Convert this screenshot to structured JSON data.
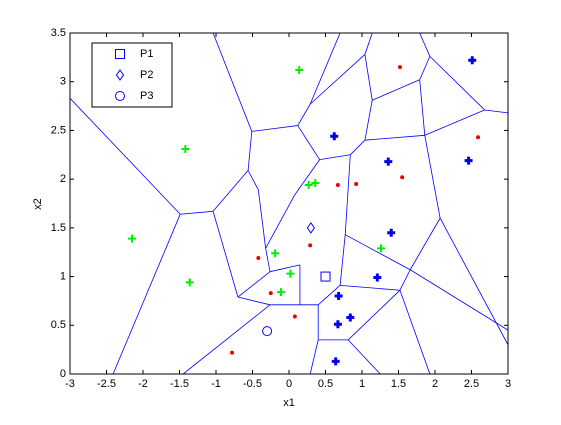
{
  "chart_data": {
    "type": "voronoi-scatter",
    "xlabel": "x1",
    "ylabel": "x2",
    "xlim": [
      -3,
      3
    ],
    "ylim": [
      0,
      3.5
    ],
    "xticks": [
      -3,
      -2.5,
      -2,
      -1.5,
      -1,
      -0.5,
      0,
      0.5,
      1,
      1.5,
      2,
      2.5,
      3
    ],
    "yticks": [
      0,
      0.5,
      1,
      1.5,
      2,
      2.5,
      3,
      3.5
    ],
    "edge_color": "#0000ff",
    "edges": [
      [
        -3.0,
        2.83,
        -1.49,
        1.64
      ],
      [
        -2.41,
        0,
        -1.49,
        1.64
      ],
      [
        -1.49,
        1.64,
        -1.04,
        1.67
      ],
      [
        -1.04,
        3.5,
        -0.51,
        2.49
      ],
      [
        -0.51,
        2.49,
        0.12,
        2.55
      ],
      [
        -0.51,
        2.49,
        -0.56,
        2.09
      ],
      [
        -0.56,
        2.09,
        -1.04,
        1.67
      ],
      [
        -0.56,
        2.09,
        -0.42,
        1.89
      ],
      [
        -0.42,
        1.89,
        -0.32,
        1.29
      ],
      [
        -0.32,
        1.29,
        -0.26,
        1.05
      ],
      [
        -1.04,
        1.67,
        -0.7,
        0.79
      ],
      [
        -0.26,
        1.05,
        -0.7,
        0.79
      ],
      [
        -0.7,
        0.79,
        -0.26,
        0.71
      ],
      [
        -0.26,
        0.71,
        -1.45,
        0
      ],
      [
        -0.26,
        0.71,
        0.15,
        0.71
      ],
      [
        0.15,
        0.71,
        0.4,
        0.71
      ],
      [
        0.4,
        0.71,
        0.4,
        0.35
      ],
      [
        0.4,
        0.35,
        0.29,
        0
      ],
      [
        0.4,
        0.35,
        0.81,
        0.35
      ],
      [
        0.81,
        0.35,
        1.25,
        0
      ],
      [
        -0.26,
        1.05,
        0.15,
        1.12
      ],
      [
        0.15,
        1.12,
        0.15,
        0.71
      ],
      [
        0.12,
        2.55,
        0.29,
        2.77
      ],
      [
        0.29,
        2.77,
        0.7,
        3.5
      ],
      [
        0.29,
        2.77,
        1.04,
        3.28
      ],
      [
        1.04,
        3.28,
        1.14,
        3.5
      ],
      [
        1.04,
        3.28,
        1.14,
        2.81
      ],
      [
        1.14,
        2.81,
        1.79,
        3.02
      ],
      [
        1.79,
        3.02,
        1.93,
        3.26
      ],
      [
        1.93,
        3.26,
        1.79,
        3.5
      ],
      [
        1.93,
        3.26,
        2.68,
        2.71
      ],
      [
        2.68,
        2.71,
        3.0,
        2.68
      ],
      [
        1.14,
        2.81,
        1.04,
        2.4
      ],
      [
        1.04,
        2.4,
        0.84,
        2.25
      ],
      [
        0.84,
        2.25,
        0.42,
        2.2
      ],
      [
        0.42,
        2.2,
        0.12,
        2.55
      ],
      [
        1.79,
        3.02,
        1.86,
        2.45
      ],
      [
        1.04,
        2.4,
        1.86,
        2.45
      ],
      [
        1.86,
        2.45,
        2.68,
        2.71
      ],
      [
        1.86,
        2.45,
        2.07,
        1.6
      ],
      [
        2.07,
        1.6,
        3.0,
        0.3
      ],
      [
        2.07,
        1.6,
        1.66,
        1.07
      ],
      [
        1.66,
        1.07,
        3.0,
        0.45
      ],
      [
        0.84,
        2.25,
        0.77,
        1.43
      ],
      [
        0.77,
        1.43,
        1.66,
        1.07
      ],
      [
        0.42,
        2.2,
        0.08,
        1.84
      ],
      [
        0.08,
        1.84,
        -0.32,
        1.29
      ],
      [
        0.77,
        1.43,
        0.7,
        0.91
      ],
      [
        0.7,
        0.91,
        0.4,
        0.71
      ],
      [
        0.7,
        0.91,
        1.52,
        0.86
      ],
      [
        1.52,
        0.86,
        1.66,
        1.07
      ],
      [
        1.52,
        0.86,
        1.93,
        0
      ],
      [
        0.81,
        0.35,
        1.52,
        0.86
      ]
    ],
    "series": [
      {
        "color": "#00ee00",
        "marker": "plus",
        "x": [
          0.14,
          -1.42,
          -2.15,
          -1.36,
          -0.19,
          0.02,
          -0.11,
          0.27,
          0.36,
          1.26
        ],
        "y": [
          3.12,
          2.31,
          1.39,
          0.94,
          1.24,
          1.03,
          0.84,
          1.94,
          1.96,
          1.29
        ]
      },
      {
        "color": "#ee0000",
        "marker": "dot",
        "x": [
          1.52,
          2.59,
          1.55,
          0.67,
          0.92,
          0.29,
          -0.42,
          -0.25,
          0.08,
          -0.78
        ],
        "y": [
          3.15,
          2.43,
          2.02,
          1.94,
          1.95,
          1.32,
          1.19,
          0.83,
          0.59,
          0.22
        ]
      },
      {
        "color": "#0000ee",
        "marker": "bold-plus",
        "x": [
          2.51,
          0.62,
          1.36,
          2.46,
          1.4,
          1.21,
          0.68,
          0.84,
          0.67,
          0.64
        ],
        "y": [
          3.22,
          2.44,
          2.18,
          2.19,
          1.45,
          0.99,
          0.8,
          0.58,
          0.51,
          0.13
        ]
      }
    ],
    "queries": [
      {
        "name": "P1",
        "marker": "square",
        "color": "#0000ff",
        "x": 0.5,
        "y": 1.0
      },
      {
        "name": "P2",
        "marker": "diamond",
        "color": "#0000ff",
        "x": 0.3,
        "y": 1.5
      },
      {
        "name": "P3",
        "marker": "circle",
        "color": "#0000ff",
        "x": -0.3,
        "y": 0.44
      }
    ],
    "legend": "upper-left"
  }
}
